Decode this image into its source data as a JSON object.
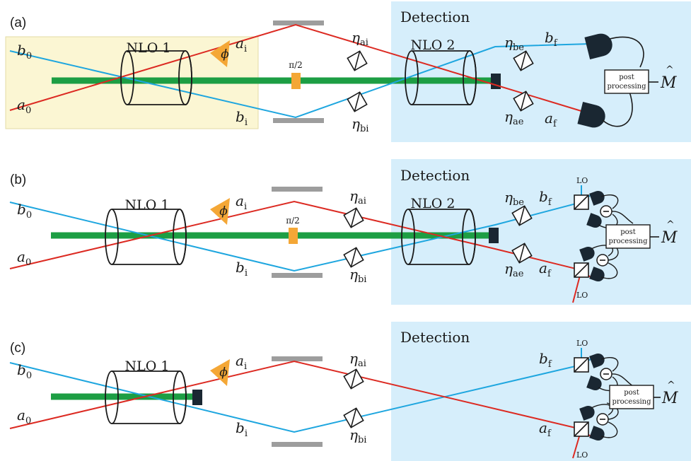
{
  "colors": {
    "red": "#dc2a22",
    "blue": "#1ea6df",
    "green": "#1d9e44",
    "orange": "#f4a736",
    "detection_bg": "#d6eefb",
    "source_bg": "#fbf6d3",
    "mirror": "#9d9d9d",
    "dark": "#1a2732"
  },
  "panels": [
    {
      "tag": "(a)",
      "detection_title": "Detection",
      "nlo1": "NLO 1",
      "nlo2": "NLO 2",
      "beam_a0": "a",
      "beam_a0_sub": "0",
      "beam_b0": "b",
      "beam_b0_sub": "0",
      "beam_ai": "a",
      "beam_ai_sub": "i",
      "beam_bi": "b",
      "beam_bi_sub": "i",
      "phase": "ϕ",
      "wave_plate": "π/2",
      "eta_ai": "η",
      "eta_ai_sub": "ai",
      "eta_bi": "η",
      "eta_bi_sub": "bi",
      "eta_be": "η",
      "eta_be_sub": "be",
      "eta_ae": "η",
      "eta_ae_sub": "ae",
      "beam_bf": "b",
      "beam_bf_sub": "f",
      "beam_af": "a",
      "beam_af_sub": "f",
      "post1": "post",
      "post2": "processing",
      "output": "M"
    },
    {
      "tag": "(b)",
      "detection_title": "Detection",
      "nlo1": "NLO 1",
      "nlo2": "NLO 2",
      "beam_a0": "a",
      "beam_a0_sub": "0",
      "beam_b0": "b",
      "beam_b0_sub": "0",
      "beam_ai": "a",
      "beam_ai_sub": "i",
      "beam_bi": "b",
      "beam_bi_sub": "i",
      "phase": "ϕ",
      "wave_plate": "π/2",
      "eta_ai": "η",
      "eta_ai_sub": "ai",
      "eta_bi": "η",
      "eta_bi_sub": "bi",
      "eta_be": "η",
      "eta_be_sub": "be",
      "eta_ae": "η",
      "eta_ae_sub": "ae",
      "beam_bf": "b",
      "beam_bf_sub": "f",
      "beam_af": "a",
      "beam_af_sub": "f",
      "lo_top": "LO",
      "lo_bottom": "LO",
      "post1": "post",
      "post2": "processing",
      "output": "M"
    },
    {
      "tag": "(c)",
      "detection_title": "Detection",
      "nlo1": "NLO 1",
      "beam_a0": "a",
      "beam_a0_sub": "0",
      "beam_b0": "b",
      "beam_b0_sub": "0",
      "beam_ai": "a",
      "beam_ai_sub": "i",
      "beam_bi": "b",
      "beam_bi_sub": "i",
      "phase": "ϕ",
      "eta_ai": "η",
      "eta_ai_sub": "ai",
      "eta_bi": "η",
      "eta_bi_sub": "bi",
      "beam_bf": "b",
      "beam_bf_sub": "f",
      "beam_af": "a",
      "beam_af_sub": "f",
      "lo_top": "LO",
      "lo_bottom": "LO",
      "post1": "post",
      "post2": "processing",
      "output": "M"
    }
  ]
}
